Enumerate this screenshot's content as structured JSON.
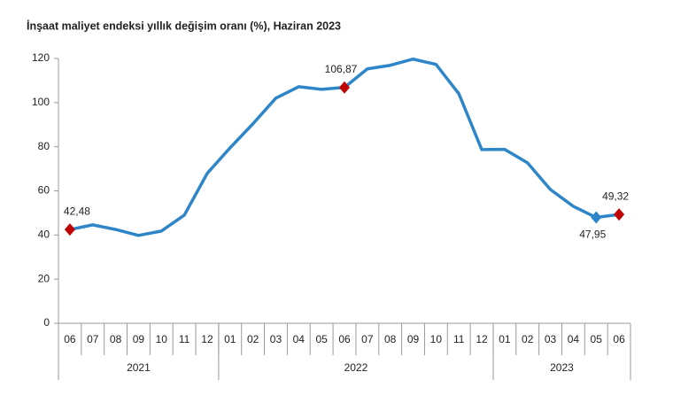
{
  "chart_data": {
    "type": "line",
    "title": "İnşaat maliyet endeksi yıllık değişim oranı (%), Haziran 2023",
    "categories": [
      "06",
      "07",
      "08",
      "09",
      "10",
      "11",
      "12",
      "01",
      "02",
      "03",
      "04",
      "05",
      "06",
      "07",
      "08",
      "09",
      "10",
      "11",
      "12",
      "01",
      "02",
      "03",
      "04",
      "05",
      "06"
    ],
    "groups": [
      {
        "label": "2021",
        "count": 7
      },
      {
        "label": "2022",
        "count": 12
      },
      {
        "label": "2023",
        "count": 6
      }
    ],
    "series": [
      {
        "color": "#2e86c8",
        "values": [
          42.48,
          44.6,
          42.5,
          39.8,
          41.8,
          49,
          67.9,
          79.5,
          90.4,
          102,
          107.2,
          106,
          106.87,
          115.3,
          116.9,
          119.7,
          117.3,
          104,
          78.7,
          78.8,
          72.7,
          60.6,
          53,
          47.95,
          49.32
        ],
        "value_labels": [
          "42,48",
          null,
          null,
          null,
          null,
          null,
          null,
          null,
          null,
          null,
          null,
          null,
          "106,87",
          null,
          null,
          null,
          null,
          null,
          null,
          null,
          null,
          null,
          null,
          "47,95",
          "49,32"
        ],
        "marker_colors": [
          "#c00000",
          null,
          null,
          null,
          null,
          null,
          null,
          null,
          null,
          null,
          null,
          null,
          "#c00000",
          null,
          null,
          null,
          null,
          null,
          null,
          null,
          null,
          null,
          null,
          "#2e86c8",
          "#c00000"
        ]
      }
    ],
    "ylim": [
      0,
      120
    ],
    "yticks": [
      0,
      20,
      40,
      60,
      80,
      100,
      120
    ],
    "grid": false
  }
}
